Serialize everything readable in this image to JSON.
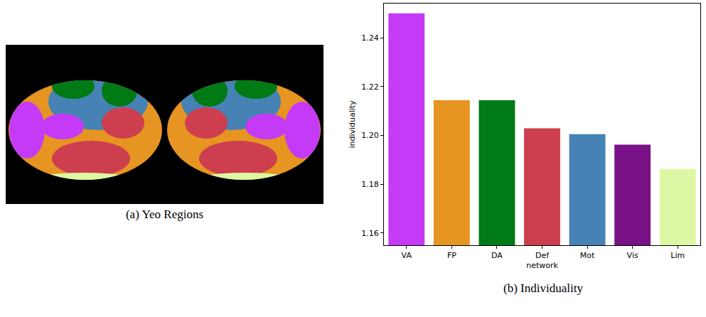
{
  "chart_data": {
    "type": "bar",
    "categories": [
      "VA",
      "FP",
      "DA",
      "Def",
      "Mot",
      "Vis",
      "Lim"
    ],
    "values": [
      1.25,
      1.2144,
      1.2144,
      1.2029,
      1.2005,
      1.1962,
      1.1862
    ],
    "colors": [
      "#c43af7",
      "#e69422",
      "#007a14",
      "#cd3e4e",
      "#4682b4",
      "#781286",
      "#dcf8a4"
    ],
    "x_label": "network",
    "y_label": "individuality",
    "ylim": [
      1.155,
      1.254
    ],
    "yticks": [
      1.16,
      1.18,
      {
        "value": 1.2,
        "label": "1.20"
      },
      1.22,
      1.24
    ],
    "grid": false,
    "caption": "(b) Individuality"
  },
  "image_panel": {
    "caption": "(a) Yeo Regions"
  }
}
